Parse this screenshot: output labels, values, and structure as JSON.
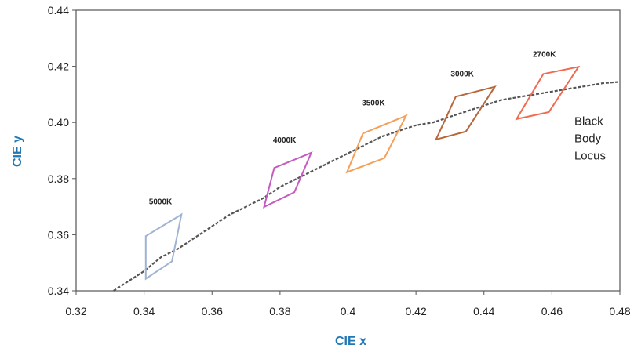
{
  "chart_data": {
    "type": "scatter",
    "xlabel": "CIE x",
    "ylabel": "CIE y",
    "xlim": [
      0.32,
      0.48
    ],
    "ylim": [
      0.34,
      0.44
    ],
    "x_ticks": [
      "0.32",
      "0.34",
      "0.36",
      "0.38",
      "0.4",
      "0.42",
      "0.44",
      "0.46",
      "0.48"
    ],
    "y_ticks": [
      "0.34",
      "0.36",
      "0.38",
      "0.40",
      "0.42",
      "0.44"
    ],
    "colors": {
      "axis_title": "#1f77b4",
      "locus": "#555555",
      "q5000": "#9fb3d4",
      "q4000": "#c45bbf",
      "q3500": "#f4a05a",
      "q3000": "#b8663a",
      "q2700": "#ef6a4f"
    },
    "black_body_locus": {
      "label_lines": [
        "Black",
        "Body",
        "Locus"
      ],
      "points": [
        [
          0.331,
          0.34
        ],
        [
          0.34,
          0.347
        ],
        [
          0.345,
          0.352
        ],
        [
          0.35,
          0.355
        ],
        [
          0.355,
          0.359
        ],
        [
          0.36,
          0.363
        ],
        [
          0.365,
          0.367
        ],
        [
          0.37,
          0.37
        ],
        [
          0.375,
          0.373
        ],
        [
          0.38,
          0.377
        ],
        [
          0.385,
          0.38
        ],
        [
          0.39,
          0.383
        ],
        [
          0.395,
          0.386
        ],
        [
          0.4,
          0.389
        ],
        [
          0.405,
          0.392
        ],
        [
          0.41,
          0.395
        ],
        [
          0.415,
          0.397
        ],
        [
          0.42,
          0.399
        ],
        [
          0.425,
          0.4
        ],
        [
          0.43,
          0.402
        ],
        [
          0.435,
          0.404
        ],
        [
          0.44,
          0.406
        ],
        [
          0.445,
          0.408
        ],
        [
          0.45,
          0.409
        ],
        [
          0.455,
          0.41
        ],
        [
          0.46,
          0.411
        ],
        [
          0.465,
          0.412
        ],
        [
          0.47,
          0.413
        ],
        [
          0.475,
          0.414
        ],
        [
          0.48,
          0.4145
        ]
      ]
    },
    "quadrangles": [
      {
        "label": "5000K",
        "color_key": "q5000",
        "vertices": [
          [
            0.3405,
            0.3595
          ],
          [
            0.351,
            0.3672
          ],
          [
            0.3482,
            0.3505
          ],
          [
            0.3405,
            0.3443
          ]
        ]
      },
      {
        "label": "4000K",
        "color_key": "q4000",
        "vertices": [
          [
            0.3783,
            0.3838
          ],
          [
            0.3892,
            0.3892
          ],
          [
            0.3842,
            0.3751
          ],
          [
            0.3753,
            0.3699
          ]
        ]
      },
      {
        "label": "3500K",
        "color_key": "q3500",
        "vertices": [
          [
            0.4044,
            0.3961
          ],
          [
            0.4171,
            0.4024
          ],
          [
            0.4107,
            0.3873
          ],
          [
            0.3997,
            0.3823
          ]
        ]
      },
      {
        "label": "3000K",
        "color_key": "q3000",
        "vertices": [
          [
            0.4317,
            0.4092
          ],
          [
            0.4432,
            0.4127
          ],
          [
            0.4347,
            0.3968
          ],
          [
            0.4259,
            0.3939
          ]
        ]
      },
      {
        "label": "2700K",
        "color_key": "q2700",
        "vertices": [
          [
            0.4575,
            0.4173
          ],
          [
            0.4678,
            0.4198
          ],
          [
            0.4591,
            0.4037
          ],
          [
            0.4496,
            0.4012
          ]
        ]
      }
    ]
  }
}
